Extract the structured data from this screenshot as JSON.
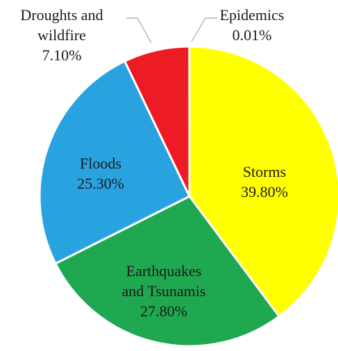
{
  "chart_data": {
    "type": "pie",
    "title": "",
    "slices": [
      {
        "label_lines": [
          "Storms"
        ],
        "value_text": "39.80%",
        "value": 39.8,
        "color": "#ffff00"
      },
      {
        "label_lines": [
          "Earthquakes",
          "and Tsunamis"
        ],
        "value_text": "27.80%",
        "value": 27.8,
        "color": "#1fa84f"
      },
      {
        "label_lines": [
          "Floods"
        ],
        "value_text": "25.30%",
        "value": 25.3,
        "color": "#29a3e0"
      },
      {
        "label_lines": [
          "Droughts and",
          "wildfire"
        ],
        "value_text": "7.10%",
        "value": 7.1,
        "color": "#ed1c24"
      },
      {
        "label_lines": [
          "Epidemics"
        ],
        "value_text": "0.01%",
        "value": 0.01,
        "color": "#7f7f7f"
      }
    ],
    "start_angle": "12 o'clock",
    "direction": "clockwise",
    "legend": "none"
  }
}
